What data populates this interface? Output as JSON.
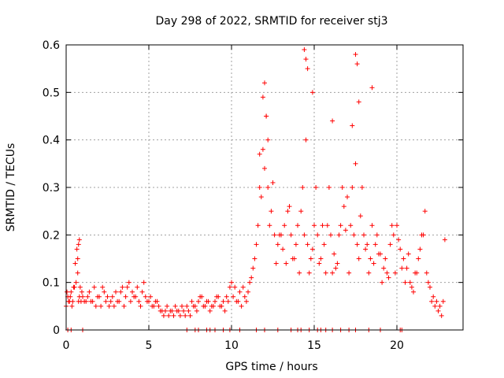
{
  "chart_data": {
    "type": "scatter",
    "title": "Day 298 of 2022, SRMTID for receiver stj3",
    "xlabel": "GPS time / hours",
    "ylabel": "SRMTID / TECUs",
    "xlim": [
      0,
      24
    ],
    "ylim": [
      0,
      0.6
    ],
    "xticks": [
      0,
      5,
      10,
      15,
      20
    ],
    "xtick_labels": [
      "0",
      "5",
      "10",
      "15",
      "20"
    ],
    "yticks": [
      0,
      0.1,
      0.2,
      0.3,
      0.4,
      0.5,
      0.6
    ],
    "ytick_labels": [
      "0",
      "0.1",
      "0.2",
      "0.3",
      "0.4",
      "0.5",
      "0.6"
    ],
    "grid": true,
    "marker": "+",
    "color": "#ff0000",
    "series": [
      {
        "name": "SRMTID",
        "x": [
          0.0,
          0.1,
          0.2,
          0.3,
          0.4,
          0.5,
          0.6,
          0.7,
          0.8,
          0.9,
          1.0,
          1.2,
          1.4,
          1.6,
          1.8,
          2.0,
          2.2,
          2.4,
          2.6,
          2.8,
          3.0,
          3.2,
          3.4,
          3.6,
          3.8,
          4.0,
          4.2,
          4.4,
          4.6,
          4.8,
          5.0,
          5.2,
          5.4,
          5.6,
          5.8,
          6.0,
          6.2,
          6.4,
          6.6,
          6.8,
          7.0,
          7.2,
          7.4,
          7.6,
          7.8,
          8.0,
          8.2,
          8.4,
          8.6,
          8.8,
          9.0,
          9.2,
          9.4,
          9.6,
          9.8,
          10.0,
          10.2,
          10.4,
          10.6,
          10.8,
          11.0,
          11.2,
          11.4,
          11.6,
          11.8,
          12.0,
          12.2,
          12.4,
          12.6,
          12.8,
          13.0,
          13.2,
          13.4,
          13.6,
          13.8,
          14.0,
          14.2,
          14.4,
          14.6,
          14.8,
          15.0,
          15.2,
          15.4,
          15.6,
          15.8,
          16.0,
          16.2,
          16.4,
          16.6,
          16.8,
          17.0,
          17.2,
          17.4,
          17.6,
          17.8,
          18.0,
          18.2,
          18.4,
          18.6,
          18.8,
          19.0,
          19.2,
          19.4,
          19.6,
          19.8,
          20.0,
          20.2,
          20.4,
          20.6,
          20.8,
          21.0,
          21.2,
          21.4,
          21.6,
          21.8,
          22.0,
          22.2,
          22.4,
          22.6,
          22.8,
          0.05,
          0.15,
          0.25,
          0.35,
          0.45,
          0.55,
          0.65,
          0.75,
          0.85,
          0.95,
          1.1,
          1.3,
          1.5,
          1.7,
          1.9,
          2.1,
          2.3,
          2.5,
          2.7,
          2.9,
          3.1,
          3.3,
          3.5,
          3.7,
          3.9,
          4.1,
          4.3,
          4.5,
          4.7,
          4.9,
          5.1,
          5.3,
          5.5,
          5.7,
          5.9,
          6.1,
          6.3,
          6.5,
          6.7,
          6.9,
          7.1,
          7.3,
          7.5,
          7.7,
          7.9,
          8.1,
          8.3,
          8.5,
          8.7,
          8.9,
          9.1,
          9.3,
          9.5,
          9.7,
          9.9,
          10.1,
          10.3,
          10.5,
          10.7,
          10.9,
          11.1,
          11.3,
          11.5,
          11.7,
          11.9,
          12.1,
          12.3,
          12.5,
          12.7,
          12.9,
          13.1,
          13.3,
          13.5,
          13.7,
          13.9,
          14.1,
          14.3,
          14.5,
          14.7,
          14.9,
          15.1,
          15.3,
          15.5,
          15.7,
          15.9,
          16.1,
          16.3,
          16.5,
          16.7,
          16.9,
          17.1,
          17.3,
          17.5,
          17.7,
          17.9,
          18.1,
          18.3,
          18.5,
          18.7,
          18.9,
          19.1,
          19.3,
          19.5,
          19.7,
          19.9,
          20.1,
          20.3,
          20.5,
          20.7,
          20.9,
          21.1,
          21.3,
          21.5,
          21.7,
          21.9,
          22.1,
          22.3,
          22.5,
          22.7,
          22.9,
          0.7,
          0.75,
          0.8,
          11.9,
          12.0,
          12.1,
          12.2,
          14.4,
          14.5,
          14.6,
          17.5,
          17.6,
          17.7,
          16.1,
          18.5,
          11.7,
          14.9,
          17.3
        ],
        "y": [
          0.05,
          0.07,
          0.06,
          0.08,
          0.06,
          0.09,
          0.1,
          0.12,
          0.07,
          0.06,
          0.07,
          0.06,
          0.08,
          0.06,
          0.05,
          0.07,
          0.09,
          0.06,
          0.05,
          0.07,
          0.08,
          0.06,
          0.09,
          0.07,
          0.1,
          0.08,
          0.07,
          0.06,
          0.08,
          0.07,
          0.06,
          0.05,
          0.06,
          0.05,
          0.04,
          0.04,
          0.03,
          0.04,
          0.05,
          0.04,
          0.05,
          0.03,
          0.04,
          0.06,
          0.05,
          0.06,
          0.07,
          0.05,
          0.06,
          0.05,
          0.06,
          0.07,
          0.05,
          0.04,
          0.06,
          0.1,
          0.09,
          0.06,
          0.05,
          0.07,
          0.08,
          0.11,
          0.15,
          0.22,
          0.28,
          0.34,
          0.3,
          0.25,
          0.2,
          0.18,
          0.2,
          0.22,
          0.25,
          0.2,
          0.15,
          0.22,
          0.25,
          0.2,
          0.18,
          0.15,
          0.22,
          0.2,
          0.15,
          0.18,
          0.22,
          0.2,
          0.16,
          0.14,
          0.22,
          0.26,
          0.28,
          0.22,
          0.2,
          0.18,
          0.24,
          0.2,
          0.18,
          0.15,
          0.14,
          0.2,
          0.16,
          0.13,
          0.12,
          0.18,
          0.2,
          0.22,
          0.17,
          0.15,
          0.13,
          0.1,
          0.08,
          0.12,
          0.17,
          0.2,
          0.12,
          0.09,
          0.07,
          0.06,
          0.05,
          0.06,
          0.08,
          0.06,
          0.07,
          0.05,
          0.09,
          0.14,
          0.17,
          0.06,
          0.09,
          0.08,
          0.06,
          0.07,
          0.06,
          0.09,
          0.07,
          0.05,
          0.08,
          0.07,
          0.06,
          0.05,
          0.06,
          0.08,
          0.05,
          0.09,
          0.06,
          0.07,
          0.09,
          0.05,
          0.1,
          0.06,
          0.07,
          0.05,
          0.06,
          0.04,
          0.03,
          0.05,
          0.04,
          0.03,
          0.04,
          0.03,
          0.04,
          0.05,
          0.03,
          0.05,
          0.04,
          0.07,
          0.05,
          0.06,
          0.04,
          0.05,
          0.07,
          0.05,
          0.06,
          0.07,
          0.09,
          0.07,
          0.06,
          0.08,
          0.09,
          0.06,
          0.1,
          0.13,
          0.18,
          0.3,
          0.38,
          0.45,
          0.22,
          0.31,
          0.14,
          0.2,
          0.17,
          0.14,
          0.26,
          0.15,
          0.18,
          0.12,
          0.3,
          0.4,
          0.12,
          0.17,
          0.3,
          0.14,
          0.22,
          0.12,
          0.3,
          0.12,
          0.13,
          0.2,
          0.3,
          0.21,
          0.12,
          0.3,
          0.35,
          0.15,
          0.3,
          0.17,
          0.12,
          0.22,
          0.18,
          0.16,
          0.1,
          0.15,
          0.11,
          0.22,
          0.12,
          0.19,
          0.13,
          0.1,
          0.16,
          0.09,
          0.12,
          0.15,
          0.2,
          0.25,
          0.1,
          0.06,
          0.05,
          0.04,
          0.03,
          0.19,
          0.15,
          0.18,
          0.19,
          0.49,
          0.52,
          0.45,
          0.4,
          0.59,
          0.57,
          0.55,
          0.58,
          0.56,
          0.48,
          0.44,
          0.51,
          0.37,
          0.5,
          0.43
        ]
      }
    ],
    "near_zero_band_x": [
      0.1,
      0.3,
      1.0,
      7.3,
      7.8,
      8.0,
      8.5,
      8.7,
      9.0,
      9.5,
      9.9,
      10.5,
      11.5,
      12.0,
      12.8,
      13.6,
      14.0,
      14.2,
      14.7,
      15.2,
      15.4,
      15.7,
      16.1,
      16.6,
      17.1,
      17.5,
      18.3,
      19.0,
      20.2,
      20.3
    ]
  }
}
